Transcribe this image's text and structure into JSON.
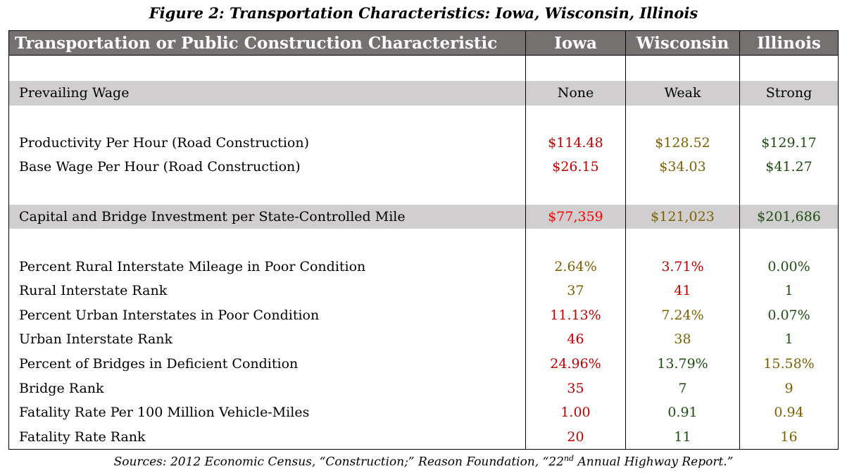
{
  "title": "Figure 2: Transportation Characteristics: Iowa, Wisconsin, Illinois",
  "colors": {
    "header_bg": "#767171",
    "band_bg": "#d0cece",
    "red": "#c00000",
    "bright_red": "#ff0000",
    "gold": "#7f6000",
    "green": "#1e4d12",
    "black": "#000000"
  },
  "headers": [
    "Transportation or Public Construction Characteristic",
    "Iowa",
    "Wisconsin",
    "Illinois"
  ],
  "rows": [
    {
      "spacer": true
    },
    {
      "label": "Prevailing Wage",
      "gray": true,
      "values": [
        {
          "v": "None",
          "c": "#000000"
        },
        {
          "v": "Weak",
          "c": "#000000"
        },
        {
          "v": "Strong",
          "c": "#000000"
        }
      ]
    },
    {
      "spacer": true
    },
    {
      "label": "Productivity Per Hour (Road Construction)",
      "values": [
        {
          "v": "$114.48",
          "c": "#c00000"
        },
        {
          "v": "$128.52",
          "c": "#7f6000"
        },
        {
          "v": "$129.17",
          "c": "#1e4d12"
        }
      ]
    },
    {
      "label": "Base Wage Per Hour (Road Construction)",
      "values": [
        {
          "v": "$26.15",
          "c": "#c00000"
        },
        {
          "v": "$34.03",
          "c": "#7f6000"
        },
        {
          "v": "$41.27",
          "c": "#1e4d12"
        }
      ]
    },
    {
      "spacer": true
    },
    {
      "label": "Capital and Bridge Investment per State-Controlled Mile",
      "gray": true,
      "values": [
        {
          "v": "$77,359",
          "c": "#ff0000"
        },
        {
          "v": "$121,023",
          "c": "#7f6000"
        },
        {
          "v": "$201,686",
          "c": "#1e4d12"
        }
      ]
    },
    {
      "spacer": true
    },
    {
      "label": "Percent Rural Interstate Mileage in Poor Condition",
      "values": [
        {
          "v": "2.64%",
          "c": "#7f6000"
        },
        {
          "v": "3.71%",
          "c": "#c00000"
        },
        {
          "v": "0.00%",
          "c": "#1e4d12"
        }
      ]
    },
    {
      "label": "Rural Interstate Rank",
      "values": [
        {
          "v": "37",
          "c": "#7f6000"
        },
        {
          "v": "41",
          "c": "#c00000"
        },
        {
          "v": "1",
          "c": "#1e4d12"
        }
      ]
    },
    {
      "label": "Percent Urban Interstates in Poor Condition",
      "values": [
        {
          "v": "11.13%",
          "c": "#c00000"
        },
        {
          "v": "7.24%",
          "c": "#7f6000"
        },
        {
          "v": "0.07%",
          "c": "#1e4d12"
        }
      ]
    },
    {
      "label": "Urban Interstate Rank",
      "values": [
        {
          "v": "46",
          "c": "#c00000"
        },
        {
          "v": "38",
          "c": "#7f6000"
        },
        {
          "v": "1",
          "c": "#1e4d12"
        }
      ]
    },
    {
      "label": "Percent of Bridges in Deficient Condition",
      "values": [
        {
          "v": "24.96%",
          "c": "#c00000"
        },
        {
          "v": "13.79%",
          "c": "#1e4d12"
        },
        {
          "v": "15.58%",
          "c": "#7f6000"
        }
      ]
    },
    {
      "label": "Bridge Rank",
      "values": [
        {
          "v": "35",
          "c": "#c00000"
        },
        {
          "v": "7",
          "c": "#1e4d12"
        },
        {
          "v": "9",
          "c": "#7f6000"
        }
      ]
    },
    {
      "label": "Fatality Rate Per 100 Million Vehicle-Miles",
      "values": [
        {
          "v": "1.00",
          "c": "#c00000"
        },
        {
          "v": "0.91",
          "c": "#1e4d12"
        },
        {
          "v": "0.94",
          "c": "#7f6000"
        }
      ]
    },
    {
      "label": "Fatality Rate Rank",
      "values": [
        {
          "v": "20",
          "c": "#c00000"
        },
        {
          "v": "11",
          "c": "#1e4d12"
        },
        {
          "v": "16",
          "c": "#7f6000"
        }
      ]
    }
  ],
  "sources": {
    "before": "Sources: 2012 Economic Census, “Construction;” Reason Foundation, “22",
    "sup": "nd",
    "after": " Annual Highway Report.”"
  }
}
